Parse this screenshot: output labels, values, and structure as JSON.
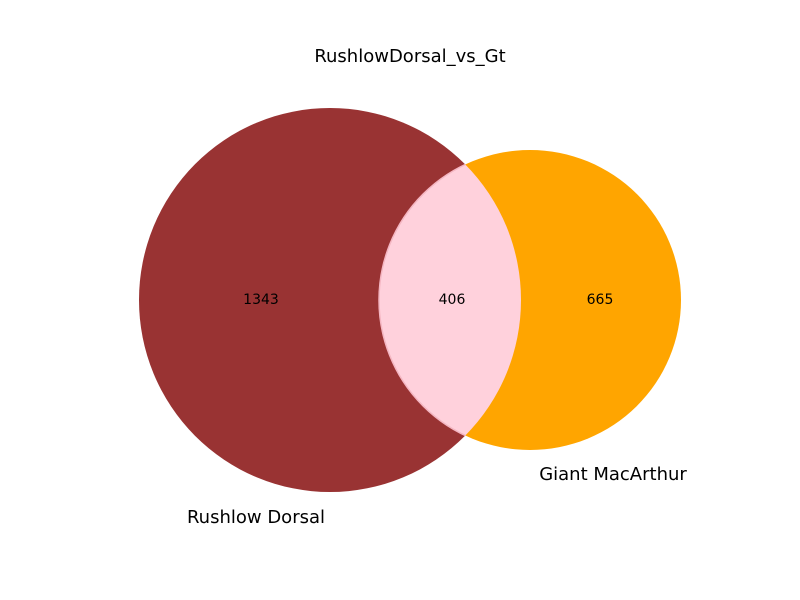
{
  "title": "RushlowDorsal_vs_Gt",
  "colors": {
    "set_a": "#993333",
    "set_b": "#ffa500",
    "intersection": "#ffd1dc",
    "intersection_edge": "#f4b6c2"
  },
  "sets": {
    "a": {
      "label": "Rushlow Dorsal",
      "only_count": "1343"
    },
    "b": {
      "label": "Giant MacArthur",
      "only_count": "665"
    }
  },
  "intersection": {
    "count": "406"
  }
}
